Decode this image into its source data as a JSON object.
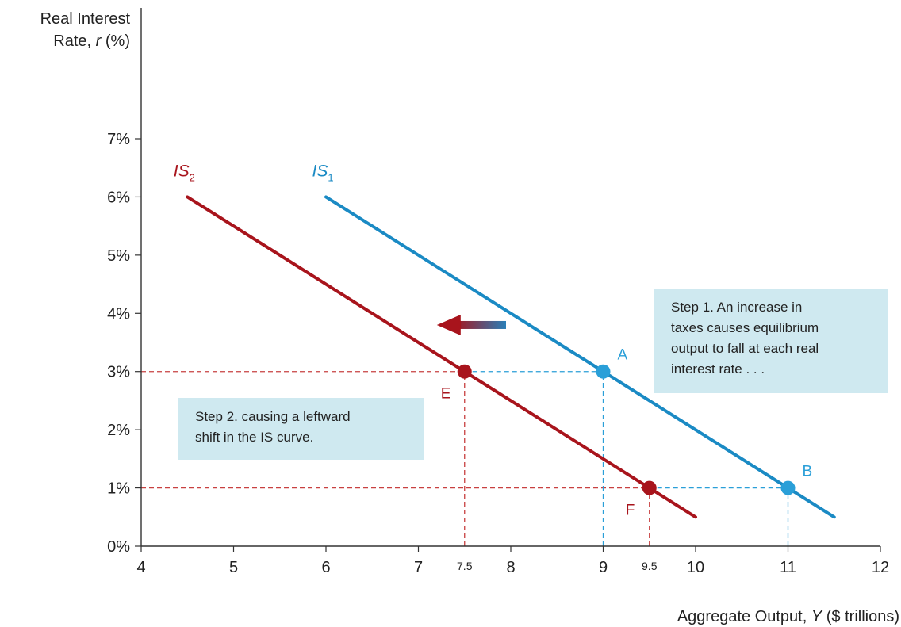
{
  "chart_data": {
    "type": "line",
    "title": "",
    "ylabel_line1": "Real Interest",
    "ylabel_line2_prefix": "Rate, ",
    "ylabel_var": "r",
    "ylabel_line2_suffix": " (%)",
    "xlabel_prefix": "Aggregate Output, ",
    "xlabel_var": "Y",
    "xlabel_suffix": " ($ trillions)",
    "xlim": [
      4,
      12
    ],
    "ylim": [
      0,
      7
    ],
    "x_ticks": [
      {
        "value": 4,
        "label": "4"
      },
      {
        "value": 5,
        "label": "5"
      },
      {
        "value": 6,
        "label": "6"
      },
      {
        "value": 7,
        "label": "7"
      },
      {
        "value": 8,
        "label": "8"
      },
      {
        "value": 9,
        "label": "9"
      },
      {
        "value": 10,
        "label": "10"
      },
      {
        "value": 11,
        "label": "11"
      },
      {
        "value": 12,
        "label": "12"
      }
    ],
    "x_minor_labels": [
      {
        "value": 7.5,
        "label": "7.5"
      },
      {
        "value": 9.5,
        "label": "9.5"
      }
    ],
    "y_ticks": [
      {
        "value": 0,
        "label": "0%"
      },
      {
        "value": 1,
        "label": "1%"
      },
      {
        "value": 2,
        "label": "2%"
      },
      {
        "value": 3,
        "label": "3%"
      },
      {
        "value": 4,
        "label": "4%"
      },
      {
        "value": 5,
        "label": "5%"
      },
      {
        "value": 6,
        "label": "6%"
      },
      {
        "value": 7,
        "label": "7%"
      }
    ],
    "series": [
      {
        "name": "IS1",
        "label_main": "IS",
        "label_sub": "1",
        "color": "#1a8ac4",
        "x": [
          6,
          11.5
        ],
        "y": [
          6,
          0.5
        ],
        "label_at": {
          "x": 5.85,
          "y": 6.35
        }
      },
      {
        "name": "IS2",
        "label_main": "IS",
        "label_sub": "2",
        "color": "#a8141c",
        "x": [
          4.5,
          10
        ],
        "y": [
          6,
          0.5
        ],
        "label_at": {
          "x": 4.35,
          "y": 6.35
        }
      }
    ],
    "points": [
      {
        "label": "A",
        "x": 9,
        "y": 3,
        "color": "#2a9fd8",
        "label_offset": "top-right"
      },
      {
        "label": "B",
        "x": 11,
        "y": 1,
        "color": "#2a9fd8",
        "label_offset": "top-right"
      },
      {
        "label": "E",
        "x": 7.5,
        "y": 3,
        "color": "#a8141c",
        "label_offset": "bottom-left"
      },
      {
        "label": "F",
        "x": 9.5,
        "y": 1,
        "color": "#a8141c",
        "label_offset": "bottom-left"
      }
    ],
    "guides": [
      {
        "from_x": 4,
        "to_x": 7.5,
        "y": 3,
        "color": "#c84040",
        "kind": "h"
      },
      {
        "from_x": 7.5,
        "to_x": 9,
        "y": 3,
        "color": "#2a9fd8",
        "kind": "h"
      },
      {
        "from_x": 4,
        "to_x": 9.5,
        "y": 1,
        "color": "#c84040",
        "kind": "h"
      },
      {
        "from_x": 9.5,
        "to_x": 11,
        "y": 1,
        "color": "#2a9fd8",
        "kind": "h"
      },
      {
        "x": 7.5,
        "from_y": 0,
        "to_y": 3,
        "color": "#c84040",
        "kind": "v"
      },
      {
        "x": 9.5,
        "from_y": 0,
        "to_y": 1,
        "color": "#c84040",
        "kind": "v"
      },
      {
        "x": 9,
        "from_y": 0,
        "to_y": 3,
        "color": "#2a9fd8",
        "kind": "v"
      },
      {
        "x": 11,
        "from_y": 0,
        "to_y": 1,
        "color": "#2a9fd8",
        "kind": "v"
      }
    ],
    "shift_arrow": {
      "from": {
        "x": 8,
        "y": 3.8
      },
      "to": {
        "x": 7.2,
        "y": 3.8
      },
      "color_start": "#2a7fb8",
      "color_end": "#a8141c"
    },
    "annotations": [
      {
        "name": "step-1-note",
        "lines": [
          "Step 1. An increase in",
          "taxes causes equilibrium",
          "output to fall at each real",
          "interest rate . . ."
        ]
      },
      {
        "name": "step-2-note",
        "lines": [
          "Step 2. causing a leftward",
          "shift in the IS curve."
        ]
      }
    ],
    "note_fill": "#cfe9f0",
    "grid": false,
    "legend": "none"
  }
}
